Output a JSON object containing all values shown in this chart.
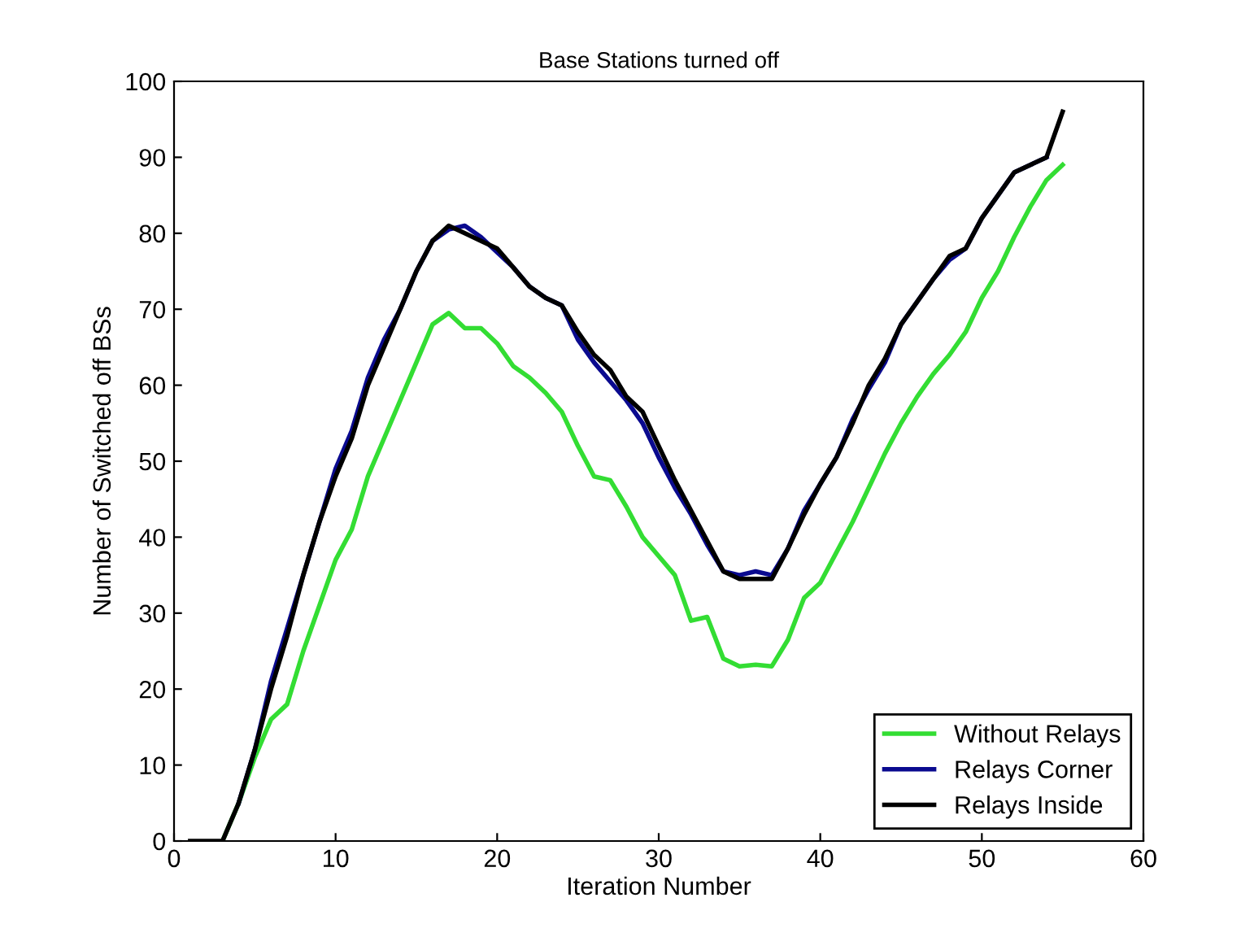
{
  "chart_data": {
    "type": "line",
    "title": "Base Stations turned off",
    "xlabel": "Iteration Number",
    "ylabel": "Number of Switched off BSs",
    "x": [
      1,
      2,
      3,
      4,
      5,
      6,
      7,
      8,
      9,
      10,
      11,
      12,
      13,
      14,
      15,
      16,
      17,
      18,
      19,
      20,
      21,
      22,
      23,
      24,
      25,
      26,
      27,
      28,
      29,
      30,
      31,
      32,
      33,
      34,
      35,
      36,
      37,
      38,
      39,
      40,
      41,
      42,
      43,
      44,
      45,
      46,
      47,
      48,
      49,
      50,
      51,
      52,
      53,
      54,
      55
    ],
    "series": [
      {
        "name": "Without Relays",
        "color": "#33dd33",
        "values": [
          null,
          null,
          0,
          5,
          11,
          16,
          18,
          25,
          31,
          37,
          41,
          48,
          53,
          58,
          63,
          68,
          69.5,
          67.5,
          67.5,
          65.5,
          62.5,
          61,
          59,
          56.5,
          52,
          48,
          47.5,
          44,
          40,
          37.5,
          35,
          29,
          29.5,
          24,
          23,
          23.2,
          23,
          26.5,
          32,
          34,
          38,
          42,
          46.5,
          51,
          55,
          58.5,
          61.5,
          64,
          67,
          71.5,
          75,
          79.5,
          83.5,
          87,
          89
        ]
      },
      {
        "name": "Relays Corner",
        "color": "#0a0a8f",
        "values": [
          null,
          null,
          null,
          5,
          12,
          21,
          28,
          35,
          42,
          49,
          54,
          61,
          66,
          70,
          75,
          79,
          80.5,
          81,
          79.5,
          77.5,
          75.5,
          73,
          71.5,
          70.5,
          66,
          63,
          60.5,
          58,
          55,
          50.5,
          46.5,
          43,
          39,
          35.5,
          35,
          35.5,
          35,
          38.5,
          43.5,
          47,
          50.5,
          55.5,
          59.5,
          63,
          68,
          71,
          74,
          76.5,
          78,
          82,
          85,
          88,
          89,
          90,
          null
        ]
      },
      {
        "name": "Relays Inside",
        "color": "#000000",
        "values": [
          0,
          0,
          0,
          5,
          12,
          20,
          27,
          35,
          42,
          48,
          53,
          60,
          65,
          70,
          75,
          79,
          81,
          80,
          79,
          78,
          75.5,
          73,
          71.5,
          70.5,
          67,
          64,
          62,
          58.5,
          56.5,
          52,
          47.5,
          43.5,
          39.5,
          35.5,
          34.5,
          34.5,
          34.5,
          38.5,
          43,
          47,
          50.5,
          55,
          60,
          63.5,
          68,
          71,
          74,
          77,
          78,
          82,
          85,
          88,
          89,
          90,
          96
        ]
      }
    ],
    "xlim": [
      0,
      60
    ],
    "ylim": [
      0,
      100
    ],
    "xticks": [
      0,
      10,
      20,
      30,
      40,
      50,
      60
    ],
    "yticks": [
      0,
      10,
      20,
      30,
      40,
      50,
      60,
      70,
      80,
      90,
      100
    ],
    "grid": false,
    "legend": "bottom right",
    "marker": "none",
    "line_style": "solid"
  }
}
